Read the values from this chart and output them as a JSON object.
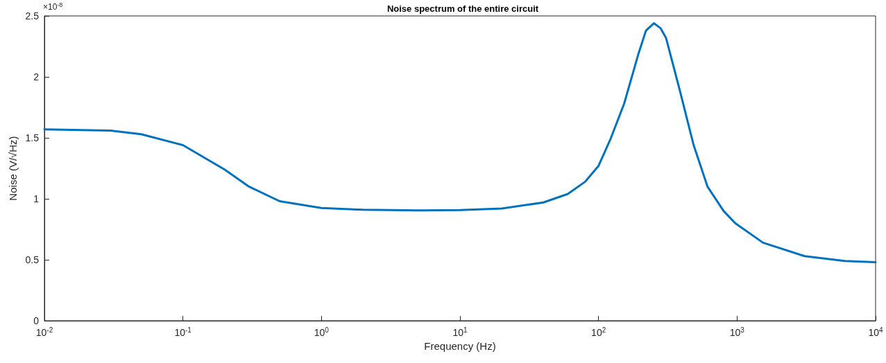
{
  "chart_data": {
    "type": "line",
    "title": "Noise spectrum of the entire circuit",
    "xlabel": "Frequency (Hz)",
    "ylabel": "Noise (V/√Hz)",
    "annotations": [
      "×10$^{-8}$"
    ],
    "log": "x",
    "grid": false,
    "marker": "none",
    "line_style": "solid",
    "xlim": [
      0.01,
      10000
    ],
    "xticks": [
      {
        "value": 0.01,
        "label": "10$^{-2}$"
      },
      {
        "value": 0.1,
        "label": "10$^{-1}$"
      },
      {
        "value": 1,
        "label": "10$^{0}$"
      },
      {
        "value": 10,
        "label": "10$^{1}$"
      },
      {
        "value": 100,
        "label": "10$^{2}$"
      },
      {
        "value": 1000,
        "label": "10$^{3}$"
      },
      {
        "value": 10000,
        "label": "10$^{4}$"
      }
    ],
    "ylim": [
      0,
      2.5
    ],
    "yticks": [
      0,
      0.5,
      1,
      1.5,
      2,
      2.5
    ],
    "series": [
      {
        "color": "#0072bd",
        "x": [
          0.01,
          0.03,
          0.05,
          0.1,
          0.2,
          0.3,
          0.5,
          1,
          2,
          5,
          10,
          20,
          40,
          60,
          80,
          100,
          122,
          153,
          193,
          220,
          251,
          280,
          307,
          386,
          486,
          612,
          800,
          971,
          1541,
          3076,
          6000,
          10000
        ],
        "values": [
          1.57,
          1.56,
          1.53,
          1.44,
          1.24,
          1.1,
          0.98,
          0.925,
          0.91,
          0.905,
          0.907,
          0.92,
          0.97,
          1.04,
          1.14,
          1.27,
          1.49,
          1.78,
          2.18,
          2.38,
          2.44,
          2.4,
          2.32,
          1.89,
          1.44,
          1.1,
          0.9,
          0.8,
          0.64,
          0.53,
          0.49,
          0.48
        ]
      }
    ]
  }
}
